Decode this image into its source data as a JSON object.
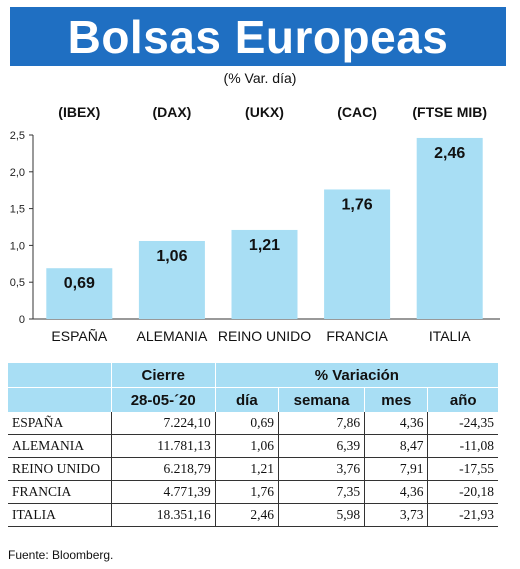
{
  "title": "Bolsas Europeas",
  "subtitle": "(% Var. día)",
  "chart_data": {
    "type": "bar",
    "categories": [
      "ESPAÑA",
      "ALEMANIA",
      "REINO UNIDO",
      "FRANCIA",
      "ITALIA"
    ],
    "tickers": [
      "(IBEX)",
      "(DAX)",
      "(UKX)",
      "(CAC)",
      "(FTSE MIB)"
    ],
    "values": [
      0.69,
      1.06,
      1.21,
      1.76,
      2.46
    ],
    "value_labels": [
      "0,69",
      "1,06",
      "1,21",
      "1,76",
      "2,46"
    ],
    "ylim": [
      0,
      2.5
    ],
    "yticks": [
      0,
      0.5,
      1.0,
      1.5,
      2.0,
      2.5
    ],
    "ytick_labels": [
      "0",
      "0,5",
      "1,0",
      "1,5",
      "2,0",
      "2,5"
    ],
    "bar_color": "#a8def4",
    "grid": false
  },
  "table": {
    "header_cierre": "Cierre",
    "header_variacion": "% Variación",
    "header_date": "28-05-´20",
    "header_cols": [
      "día",
      "semana",
      "mes",
      "año"
    ],
    "rows": [
      {
        "name": "ESPAÑA",
        "cierre": "7.224,10",
        "dia": "0,69",
        "semana": "7,86",
        "mes": "4,36",
        "ano": "-24,35"
      },
      {
        "name": "ALEMANIA",
        "cierre": "11.781,13",
        "dia": "1,06",
        "semana": "6,39",
        "mes": "8,47",
        "ano": "-11,08"
      },
      {
        "name": "REINO UNIDO",
        "cierre": "6.218,79",
        "dia": "1,21",
        "semana": "3,76",
        "mes": "7,91",
        "ano": "-17,55"
      },
      {
        "name": "FRANCIA",
        "cierre": "4.771,39",
        "dia": "1,76",
        "semana": "7,35",
        "mes": "4,36",
        "ano": "-20,18"
      },
      {
        "name": "ITALIA",
        "cierre": "18.351,16",
        "dia": "2,46",
        "semana": "5,98",
        "mes": "3,73",
        "ano": "-21,93"
      }
    ]
  },
  "source": "Fuente: Bloomberg.",
  "colors": {
    "banner": "#1f6fc2",
    "accent_light": "#a8def4"
  }
}
